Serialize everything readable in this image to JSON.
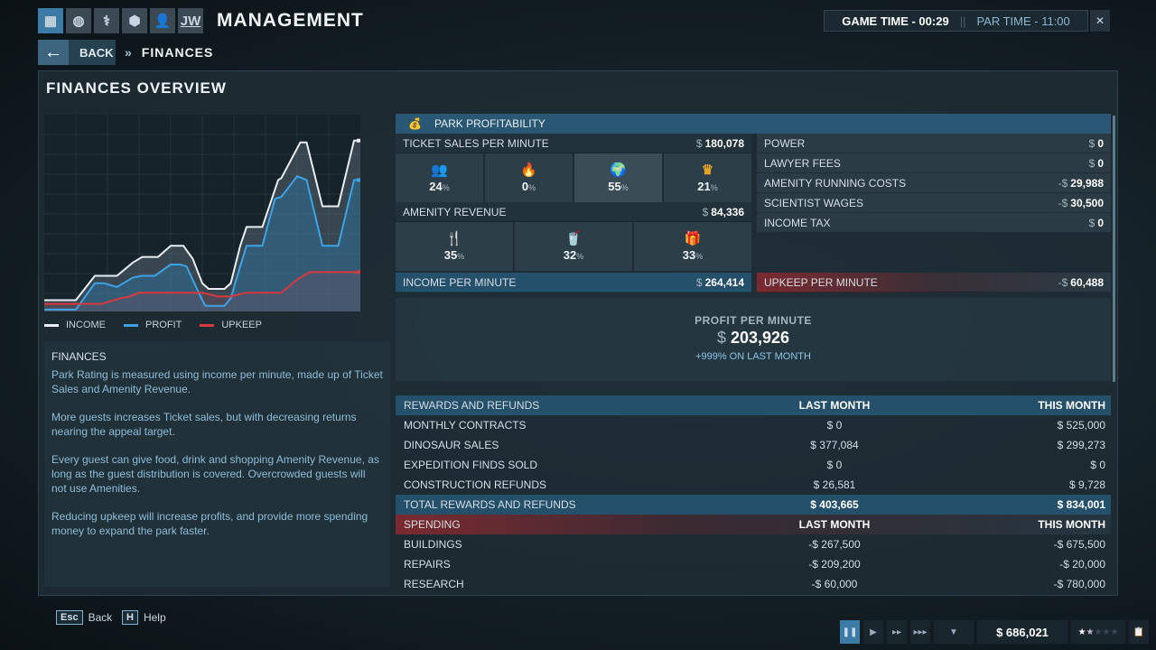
{
  "header": {
    "title": "MANAGEMENT",
    "nav_icons": [
      "management-icon",
      "globe-icon",
      "dna-icon",
      "hexagon-cluster-icon",
      "person-icon",
      "jw-logo-icon"
    ],
    "jw_label": "JW",
    "game_time": "GAME TIME - 00:29",
    "par_time": "PAR TIME - 11:00"
  },
  "nav": {
    "back_label": "BACK",
    "breadcrumb": "FINANCES"
  },
  "page_title": "FINANCES OVERVIEW",
  "chart_data": {
    "type": "line",
    "title": "",
    "xlabel": "",
    "ylabel": "",
    "grid": true,
    "legend": "bottom",
    "series": [
      {
        "name": "INCOME",
        "color": "#e8eef2",
        "points": [
          [
            0,
            6
          ],
          [
            10,
            6
          ],
          [
            16,
            19
          ],
          [
            23,
            19
          ],
          [
            28,
            26
          ],
          [
            31,
            29
          ],
          [
            36,
            29
          ],
          [
            40,
            35
          ],
          [
            44,
            35
          ],
          [
            47,
            28
          ],
          [
            50,
            15
          ],
          [
            52,
            12
          ],
          [
            57,
            12
          ],
          [
            59,
            15
          ],
          [
            62,
            35
          ],
          [
            64,
            45
          ],
          [
            69,
            45
          ],
          [
            74,
            70
          ],
          [
            75,
            71
          ],
          [
            81,
            90
          ],
          [
            83,
            90
          ],
          [
            88,
            56
          ],
          [
            93,
            56
          ],
          [
            98,
            91
          ],
          [
            100,
            91
          ]
        ]
      },
      {
        "name": "PROFIT",
        "color": "#3ea3e6",
        "points": [
          [
            0,
            1
          ],
          [
            10,
            1
          ],
          [
            16,
            15
          ],
          [
            19,
            15
          ],
          [
            23,
            13
          ],
          [
            28,
            18
          ],
          [
            31,
            19
          ],
          [
            35,
            19
          ],
          [
            40,
            25
          ],
          [
            43,
            25
          ],
          [
            45,
            24
          ],
          [
            50,
            6
          ],
          [
            51,
            3
          ],
          [
            57,
            3
          ],
          [
            59,
            7
          ],
          [
            62,
            24
          ],
          [
            64,
            35
          ],
          [
            69,
            35
          ],
          [
            73,
            60
          ],
          [
            75,
            61
          ],
          [
            80,
            72
          ],
          [
            83,
            70
          ],
          [
            88,
            35
          ],
          [
            93,
            35
          ],
          [
            98,
            70
          ],
          [
            100,
            70
          ]
        ]
      },
      {
        "name": "UPKEEP",
        "color": "#d8383e",
        "points": [
          [
            0,
            4
          ],
          [
            18,
            4
          ],
          [
            24,
            7
          ],
          [
            27,
            8
          ],
          [
            30,
            10
          ],
          [
            50,
            10
          ],
          [
            55,
            8
          ],
          [
            59,
            8
          ],
          [
            64,
            10
          ],
          [
            75,
            10
          ],
          [
            80,
            17
          ],
          [
            84,
            21
          ],
          [
            100,
            21
          ]
        ]
      }
    ]
  },
  "info": {
    "title": "FINANCES",
    "paragraphs": [
      "Park Rating is measured using income per minute, made up of Ticket Sales and Amenity Revenue.",
      "More guests increases Ticket sales, but with decreasing returns nearing the appeal target.",
      "Every guest can give food, drink and shopping Amenity Revenue, as long as the guest distribution is covered. Overcrowded guests will not use Amenities.",
      "Reducing upkeep will increase profits, and provide more spending money to expand the park faster."
    ]
  },
  "profitability": {
    "title": "PARK PROFITABILITY",
    "ticket": {
      "label": "TICKET SALES PER MINUTE",
      "cur": "$",
      "value": "180,078",
      "segments": [
        {
          "icon": "group-icon",
          "color": "#dfe8ee",
          "pct": "24"
        },
        {
          "icon": "thrill-seeker-icon",
          "color": "#e8642a",
          "pct": "0"
        },
        {
          "icon": "nature-guest-icon",
          "color": "#2fc25a",
          "pct": "55"
        },
        {
          "icon": "luxury-guest-icon",
          "color": "#e8a42a",
          "pct": "21"
        }
      ]
    },
    "amenity": {
      "label": "AMENITY REVENUE",
      "cur": "$",
      "value": "84,336",
      "segments": [
        {
          "icon": "food-icon",
          "pct": "35"
        },
        {
          "icon": "drink-icon",
          "pct": "32"
        },
        {
          "icon": "gift-icon",
          "pct": "33"
        }
      ]
    },
    "income": {
      "label": "INCOME PER MINUTE",
      "cur": "$",
      "value": "264,414"
    },
    "pct_sign": "%",
    "costs": [
      {
        "label": "POWER",
        "cur": "$",
        "value": "0"
      },
      {
        "label": "LAWYER FEES",
        "cur": "$",
        "value": "0"
      },
      {
        "label": "AMENITY RUNNING COSTS",
        "cur": "-$",
        "value": "29,988"
      },
      {
        "label": "SCIENTIST WAGES",
        "cur": "-$",
        "value": "30,500"
      },
      {
        "label": "INCOME TAX",
        "cur": "$",
        "value": "0"
      }
    ],
    "upkeep": {
      "label": "UPKEEP PER MINUTE",
      "cur": "-$",
      "value": "60,488"
    }
  },
  "profit": {
    "label": "PROFIT PER MINUTE",
    "cur": "$",
    "value": "203,926",
    "change": "+999% ON LAST MONTH"
  },
  "rewards": {
    "header": [
      "REWARDS AND REFUNDS",
      "LAST MONTH",
      "THIS MONTH"
    ],
    "rows": [
      [
        "MONTHLY CONTRACTS",
        "$ 0",
        "$ 525,000"
      ],
      [
        "DINOSAUR SALES",
        "$ 377,084",
        "$ 299,273"
      ],
      [
        "EXPEDITION FINDS SOLD",
        "$ 0",
        "$ 0"
      ],
      [
        "CONSTRUCTION REFUNDS",
        "$ 26,581",
        "$ 9,728"
      ]
    ],
    "total": [
      "TOTAL REWARDS AND REFUNDS",
      "$ 403,665",
      "$ 834,001"
    ]
  },
  "spending": {
    "header": [
      "SPENDING",
      "LAST MONTH",
      "THIS MONTH"
    ],
    "rows": [
      [
        "BUILDINGS",
        "-$ 267,500",
        "-$ 675,500"
      ],
      [
        "REPAIRS",
        "-$ 209,200",
        "-$ 20,000"
      ],
      [
        "RESEARCH",
        "-$ 60,000",
        "-$ 780,000"
      ]
    ]
  },
  "footer": {
    "esc_key": "Esc",
    "esc_label": "Back",
    "help_key": "H",
    "help_label": "Help"
  },
  "statusbar": {
    "money": "$ 686,021",
    "rating": 1.5,
    "rating_max": 5
  },
  "colors": {
    "accent": "#2a5874",
    "upkeep_red": "#7a2a30",
    "income": "#e8eef2",
    "profit": "#3ea3e6",
    "upkeep": "#d8383e"
  }
}
